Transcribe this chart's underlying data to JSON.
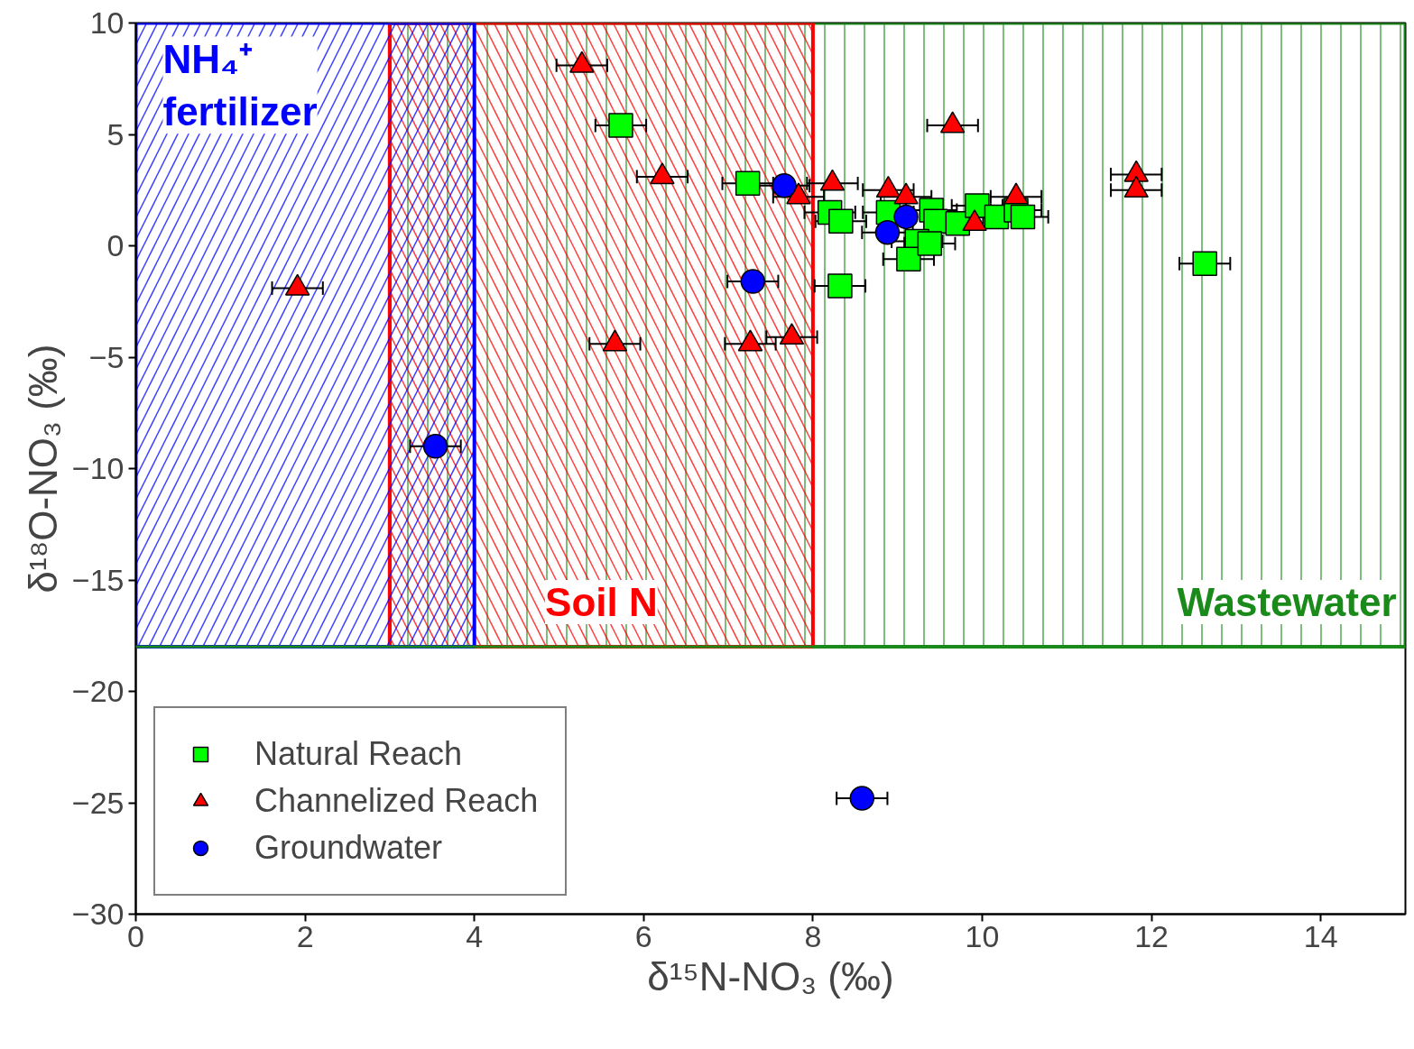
{
  "chart_data": {
    "type": "scatter",
    "xlabel": "δ¹⁵N-NO₃ (‰)",
    "ylabel": "δ¹⁸O-NO₃ (‰)",
    "xlim": [
      0,
      15
    ],
    "ylim": [
      -30,
      10
    ],
    "xticks": [
      0,
      2,
      4,
      6,
      8,
      10,
      12,
      14
    ],
    "yticks": [
      -30,
      -25,
      -20,
      -15,
      -10,
      -5,
      0,
      5,
      10
    ],
    "grid": false,
    "legend": "bottom left",
    "series": [
      {
        "name": "Natural Reach",
        "color": "#00ff00",
        "marker": "square",
        "x": [
          5.73,
          7.23,
          8.2,
          8.33,
          8.32,
          8.89,
          9.4,
          9.45,
          9.23,
          9.13,
          9.38,
          9.71,
          9.94,
          10.17,
          10.4,
          10.48,
          12.63
        ],
        "values": [
          5.4,
          2.8,
          1.5,
          1.1,
          -1.8,
          1.5,
          1.6,
          1.1,
          0.2,
          -0.6,
          0.1,
          1.0,
          1.8,
          1.3,
          1.6,
          1.3,
          -0.8
        ],
        "xerrors": [
          0.3,
          0.3,
          0.3,
          0.3,
          0.3,
          0.3,
          0.3,
          null,
          0.3,
          0.3,
          0.3,
          0.3,
          0.3,
          0.3,
          0.3,
          0.3,
          0.3
        ]
      },
      {
        "name": "Channelized Reach",
        "color": "#ff0000",
        "marker": "triangle",
        "x": [
          5.27,
          6.22,
          7.83,
          8.23,
          8.89,
          9.1,
          9.65,
          9.91,
          10.4,
          11.82,
          11.82,
          1.91,
          5.66,
          7.26,
          7.75
        ],
        "values": [
          8.1,
          3.1,
          2.2,
          2.8,
          2.5,
          2.2,
          5.4,
          1.0,
          2.2,
          3.2,
          2.5,
          -1.9,
          -4.4,
          -4.4,
          -4.1
        ],
        "xerrors": [
          0.3,
          0.3,
          0.3,
          0.3,
          0.3,
          0.3,
          0.3,
          null,
          0.3,
          0.3,
          0.3,
          0.3,
          0.3,
          0.3,
          0.3
        ]
      },
      {
        "name": "Groundwater",
        "color": "#0000ff",
        "marker": "circle",
        "x": [
          7.66,
          8.88,
          9.1,
          7.29,
          3.54,
          8.58
        ],
        "values": [
          2.7,
          0.6,
          1.3,
          -1.6,
          -9.0,
          -24.8
        ],
        "xerrors": [
          0.3,
          0.3,
          null,
          0.3,
          0.3,
          0.3
        ]
      }
    ],
    "ref_lines": [
      {
        "axis": "y",
        "value": -18,
        "color": "#1a8a1a"
      }
    ],
    "bands": [
      {
        "axis": "x",
        "from": 3,
        "to": 15,
        "label": "Wastewater",
        "color": "#1a8a1a"
      },
      {
        "axis": "x",
        "from": 3,
        "to": 8,
        "label": "Soil N",
        "color": "#ff0000"
      },
      {
        "axis": "x",
        "from": 0,
        "to": 4,
        "label": "NH₄⁺ fertilizer",
        "color": "#0000ff"
      }
    ]
  }
}
